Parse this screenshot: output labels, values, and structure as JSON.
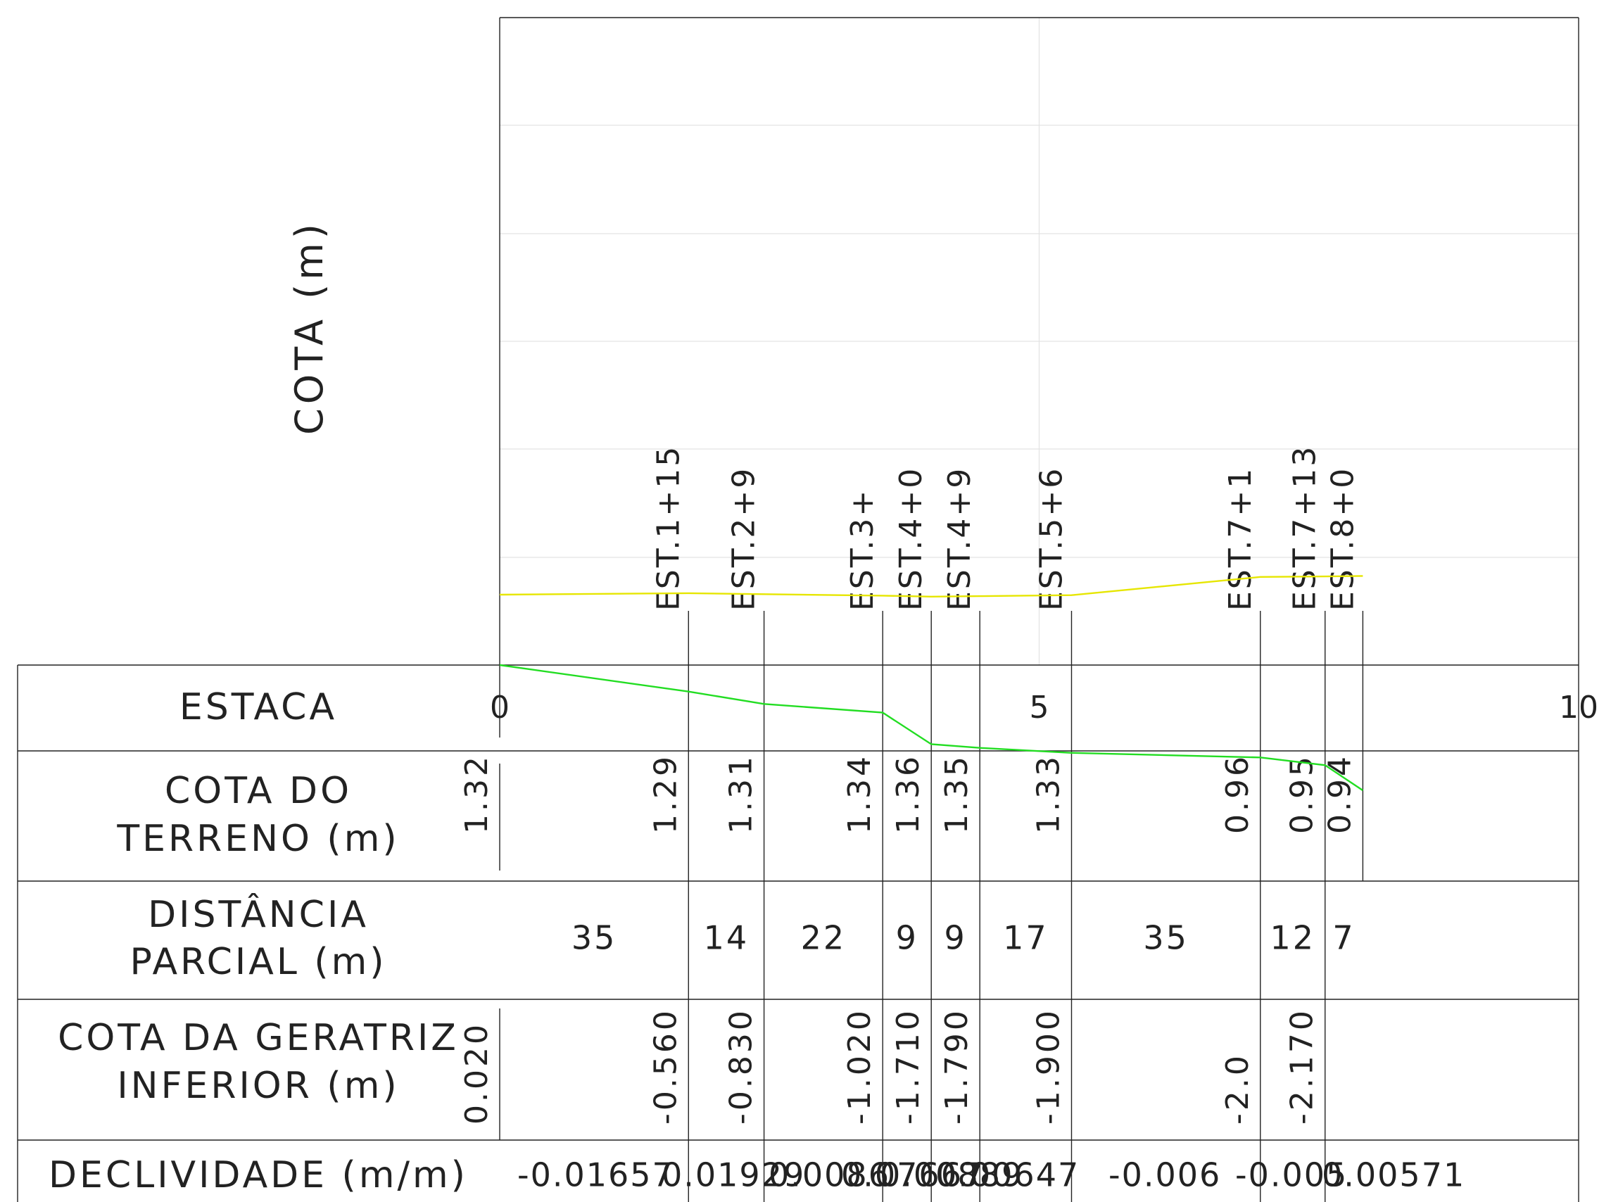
{
  "y_axis_title": "COTA (m)",
  "row_labels": {
    "estaca": [
      "ESTACA"
    ],
    "cota_terreno": [
      "COTA DO",
      "TERRENO (m)"
    ],
    "distancia": [
      "DISTÂNCIA",
      "PARCIAL (m)"
    ],
    "cota_geratriz": [
      "COTA DA GERATRIZ",
      "INFERIOR (m)"
    ],
    "declividade": [
      "DECLIVIDADE (m/m)"
    ]
  },
  "estaca_scale": [
    {
      "label": "0",
      "value": 0
    },
    {
      "label": "5",
      "value": 5
    },
    {
      "label": "10",
      "value": 10
    }
  ],
  "stations": [
    {
      "name": "EST.1+15",
      "pos": 1.75,
      "cota_terreno": "1.29",
      "cota_geratriz": "-0.560"
    },
    {
      "name": "EST.2+9",
      "pos": 2.45,
      "cota_terreno": "1.31",
      "cota_geratriz": "-0.830"
    },
    {
      "name": "EST.3+",
      "pos": 3.55,
      "cota_terreno": "1.34",
      "cota_geratriz": "-1.020"
    },
    {
      "name": "EST.4+0",
      "pos": 4.0,
      "cota_terreno": "1.36",
      "cota_geratriz": "-1.710"
    },
    {
      "name": "EST.4+9",
      "pos": 4.45,
      "cota_terreno": "1.35",
      "cota_geratriz": "-1.790"
    },
    {
      "name": "EST.5+6",
      "pos": 5.3,
      "cota_terreno": "1.33",
      "cota_geratriz": "-1.900"
    },
    {
      "name": "EST.7+1",
      "pos": 7.05,
      "cota_terreno": "0.96",
      "cota_geratriz": "-2.0"
    },
    {
      "name": "EST.7+13",
      "pos": 7.65,
      "cota_terreno": "0.95",
      "cota_geratriz": "-2.170"
    },
    {
      "name": "EST.8+0",
      "pos": 8.0,
      "cota_terreno": "0.94",
      "cota_geratriz": ""
    }
  ],
  "start_station": {
    "pos": 0,
    "cota_terreno": "1.32",
    "cota_geratriz": "0.020"
  },
  "distancias": [
    "35",
    "14",
    "22",
    "9",
    "9",
    "17",
    "35",
    "12",
    "7"
  ],
  "declividades": [
    "-0.01657",
    "0.01929",
    "0.0086",
    "0.07667",
    "0.00889",
    "0.00647",
    "-0.006",
    "-0.005",
    "0.00571"
  ],
  "chart_data": {
    "type": "line",
    "title": "",
    "xlabel": "ESTACA",
    "ylabel": "COTA (m)",
    "xlim": [
      0,
      10
    ],
    "grid": true,
    "series": [
      {
        "color": "#e6e600",
        "x": [
          0,
          1.75,
          2.45,
          3.55,
          4.0,
          4.45,
          5.3,
          7.05,
          7.65,
          8.0
        ],
        "y": [
          1.32,
          1.29,
          1.31,
          1.34,
          1.36,
          1.35,
          1.33,
          0.96,
          0.95,
          0.94
        ]
      },
      {
        "color": "#22dd22",
        "x": [
          0,
          1.75,
          2.45,
          3.55,
          4.0,
          4.45,
          5.3,
          7.05,
          7.65,
          8.0
        ],
        "y": [
          0.02,
          -0.56,
          -0.83,
          -1.02,
          -1.71,
          -1.79,
          -1.9,
          -2.0,
          -2.17,
          -2.72
        ]
      }
    ]
  },
  "colors": {
    "line": "#222222",
    "grid": "#e3e3e3",
    "terreno": "#e6e600",
    "geratriz": "#22dd22"
  }
}
